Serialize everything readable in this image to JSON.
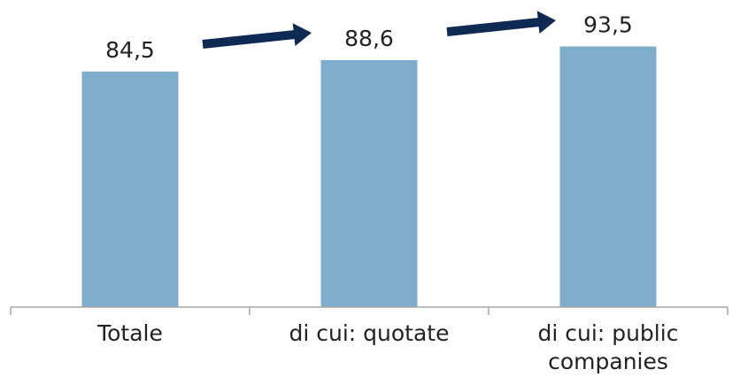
{
  "chart_data": {
    "type": "bar",
    "categories": [
      [
        "Totale"
      ],
      [
        "di cui: quotate"
      ],
      [
        "di cui: public",
        "companies"
      ]
    ],
    "values": [
      84.5,
      88.6,
      93.5
    ],
    "value_labels": [
      "84,5",
      "88,6",
      "93,5"
    ],
    "title": "",
    "xlabel": "",
    "ylabel": "",
    "ylim": [
      0,
      100
    ],
    "grid": false,
    "legend": "none",
    "annotations": [
      "arrow from Totale to di cui: quotate",
      "arrow from di cui: quotate to di cui: public companies"
    ],
    "colors": {
      "bar": "#7fadcb",
      "arrow": "#0f2a52",
      "axis": "#a6a6a6",
      "text": "#222222"
    }
  }
}
